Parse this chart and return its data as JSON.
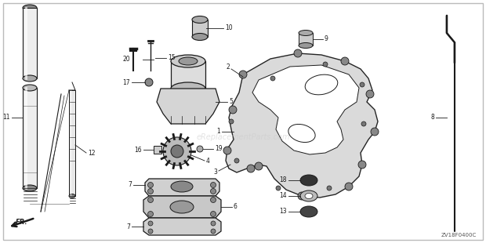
{
  "bg_color": "#ffffff",
  "border_color": "#999999",
  "diagram_code": "ZV18F0400C",
  "watermark": "eReplacementParts.com",
  "c_dark": "#1a1a1a",
  "c_mid": "#555555",
  "c_light": "#aaaaaa",
  "c_fill": "#d8d8d8",
  "c_fill2": "#c0c0c0"
}
